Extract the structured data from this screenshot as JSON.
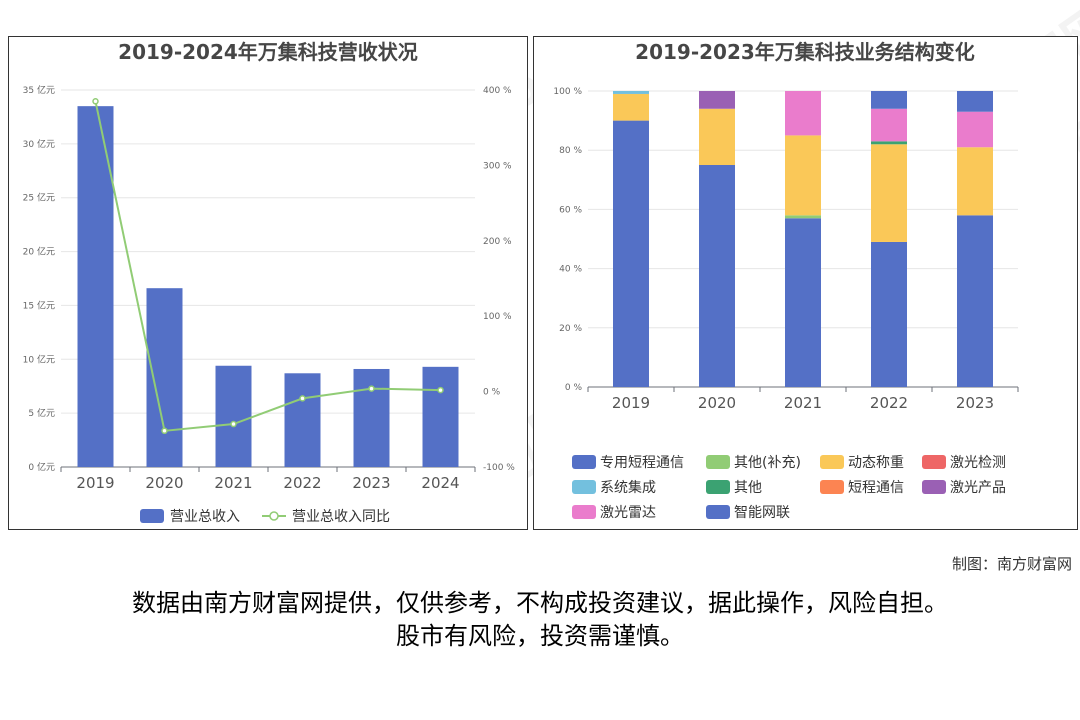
{
  "chart_data": [
    {
      "type": "bar",
      "title": "2019-2024年万集科技营收状况",
      "categories": [
        "2019",
        "2020",
        "2021",
        "2022",
        "2023",
        "2024"
      ],
      "series": [
        {
          "name": "营业总收入",
          "type": "bar",
          "axis": "left",
          "color": "#5470c6",
          "values": [
            33.5,
            16.6,
            9.4,
            8.7,
            9.1,
            9.3
          ]
        },
        {
          "name": "营业总收入同比",
          "type": "line",
          "axis": "right",
          "color": "#91cc75",
          "values": [
            385,
            -52,
            -43,
            -9,
            4,
            2
          ]
        }
      ],
      "left_axis": {
        "ylim": [
          0,
          35
        ],
        "ticks": [
          "0 亿元",
          "5 亿元",
          "10 亿元",
          "15 亿元",
          "20 亿元",
          "25 亿元",
          "30 亿元",
          "35 亿元"
        ]
      },
      "right_axis": {
        "ylim": [
          -100,
          400
        ],
        "ticks": [
          "-100 %",
          "0 %",
          "100 %",
          "200 %",
          "300 %",
          "400 %"
        ]
      },
      "legend_position": "bottom",
      "grid": true
    },
    {
      "type": "bar",
      "stacked": true,
      "title": "2019-2023年万集科技业务结构变化",
      "categories": [
        "2019",
        "2020",
        "2021",
        "2022",
        "2023"
      ],
      "series": [
        {
          "name": "专用短程通信",
          "color": "#5470c6",
          "values": [
            90,
            75,
            57,
            49,
            58
          ]
        },
        {
          "name": "其他(补充)",
          "color": "#91cc75",
          "values": [
            0,
            0,
            1,
            0,
            0
          ]
        },
        {
          "name": "动态称重",
          "color": "#fac858",
          "values": [
            9,
            19,
            27,
            33,
            23
          ]
        },
        {
          "name": "激光检测",
          "color": "#ee6666",
          "values": [
            0,
            0,
            0,
            0,
            0
          ]
        },
        {
          "name": "系统集成",
          "color": "#73c0de",
          "values": [
            1,
            0,
            0,
            0,
            0
          ]
        },
        {
          "name": "其他",
          "color": "#3ba272",
          "values": [
            0,
            0,
            0,
            1,
            0
          ]
        },
        {
          "name": "短程通信",
          "color": "#fc8452",
          "values": [
            0,
            0,
            0,
            0,
            0
          ]
        },
        {
          "name": "激光产品",
          "color": "#9a60b4",
          "values": [
            0,
            6,
            0,
            0,
            0
          ]
        },
        {
          "name": "激光雷达",
          "color": "#ea7ccc",
          "values": [
            0,
            0,
            15,
            11,
            12
          ]
        },
        {
          "name": "智能网联",
          "color": "#5470c6",
          "values": [
            0,
            0,
            0,
            6,
            7
          ]
        }
      ],
      "yaxis": {
        "ylim": [
          0,
          100
        ],
        "ticks": [
          "0 %",
          "20 %",
          "40 %",
          "60 %",
          "80 %",
          "100 %"
        ]
      },
      "legend_position": "bottom",
      "grid": true
    }
  ],
  "credit": "制图：南方财富网",
  "disclaimer": [
    "数据由南方财富网提供，仅供参考，不构成投资建议，据此操作，风险自担。",
    "股市有风险，投资需谨慎。"
  ],
  "watermark": {
    "cn": "南方财富网",
    "en": "southmoney.com"
  }
}
